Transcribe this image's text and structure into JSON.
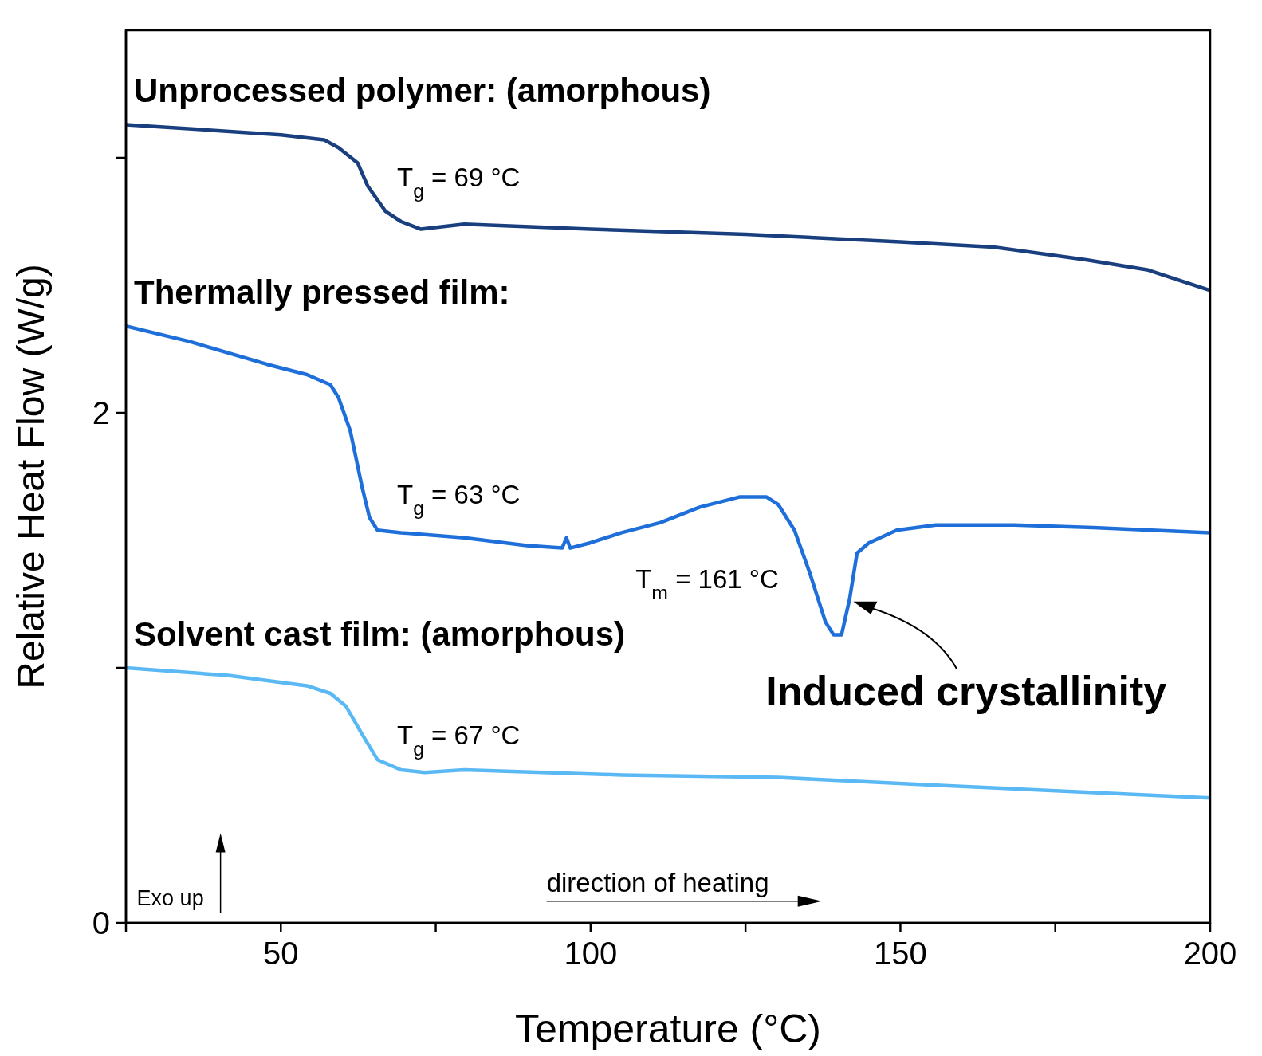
{
  "chart_data": {
    "type": "line",
    "xlabel": "Temperature (°C)",
    "ylabel": "Relative Heat Flow (W/g)",
    "xlim": [
      25,
      200
    ],
    "ylim": [
      0,
      3.5
    ],
    "xticks": [
      {
        "value": 25,
        "label": null
      },
      50,
      {
        "value": 75,
        "label": null
      },
      100,
      {
        "value": 125,
        "label": null
      },
      150,
      {
        "value": 175,
        "label": null
      },
      200
    ],
    "yticks": [
      0,
      {
        "value": 1,
        "label": null
      },
      2,
      {
        "value": 3,
        "label": null
      }
    ],
    "grid": false,
    "legend": false,
    "marker": "none",
    "line_style": "solid",
    "series": [
      {
        "name": "Unprocessed polymer: (amorphous)",
        "color": "#1a3f7f",
        "x": [
          25,
          50,
          57,
          59.3,
          62.4,
          64,
          66.9,
          69.4,
          72.6,
          79.6,
          100,
          125,
          150,
          165,
          180,
          190,
          200
        ],
        "values": [
          3.13,
          3.09,
          3.07,
          3.04,
          2.98,
          2.89,
          2.79,
          2.75,
          2.72,
          2.74,
          2.72,
          2.7,
          2.67,
          2.65,
          2.6,
          2.56,
          2.48
        ]
      },
      {
        "name": "Thermally pressed film:",
        "color": "#1e6fd9",
        "x": [
          25,
          35.2,
          47.8,
          54.2,
          58,
          59.3,
          61.2,
          63.1,
          64.3,
          65.6,
          69.4,
          79.6,
          89.7,
          95.4,
          96.1,
          96.7,
          99.9,
          105,
          111.3,
          117.6,
          124,
          128.4,
          130.3,
          132.9,
          135.4,
          137.9,
          139.2,
          140.5,
          141.8,
          143,
          144.9,
          149.4,
          155.7,
          168.4,
          181.1,
          200
        ],
        "values": [
          2.34,
          2.28,
          2.19,
          2.15,
          2.11,
          2.06,
          1.93,
          1.71,
          1.59,
          1.54,
          1.53,
          1.51,
          1.48,
          1.47,
          1.51,
          1.47,
          1.49,
          1.53,
          1.57,
          1.63,
          1.67,
          1.67,
          1.64,
          1.54,
          1.37,
          1.18,
          1.13,
          1.13,
          1.27,
          1.45,
          1.49,
          1.54,
          1.56,
          1.56,
          1.55,
          1.53
        ]
      },
      {
        "name": "Solvent cast film: (amorphous)",
        "color": "#5ab9f5",
        "x": [
          25,
          41.5,
          54.2,
          58,
          60.5,
          63.1,
          65.6,
          69.4,
          73.2,
          79.6,
          105,
          130.3,
          155.7,
          200
        ],
        "values": [
          1.0,
          0.97,
          0.93,
          0.9,
          0.85,
          0.74,
          0.64,
          0.6,
          0.59,
          0.6,
          0.58,
          0.57,
          0.54,
          0.49
        ]
      }
    ],
    "annotations": [
      "T$_{g}$ = 69 °C",
      "T$_{g}$ = 63 °C",
      "T$_{m}$ = 161 °C",
      "T$_{g}$ = 67 °C",
      {
        "text": "Induced crystallinity",
        "x": 142.4,
        "y": 1.26
      },
      "Exo up",
      "direction of heating"
    ]
  }
}
